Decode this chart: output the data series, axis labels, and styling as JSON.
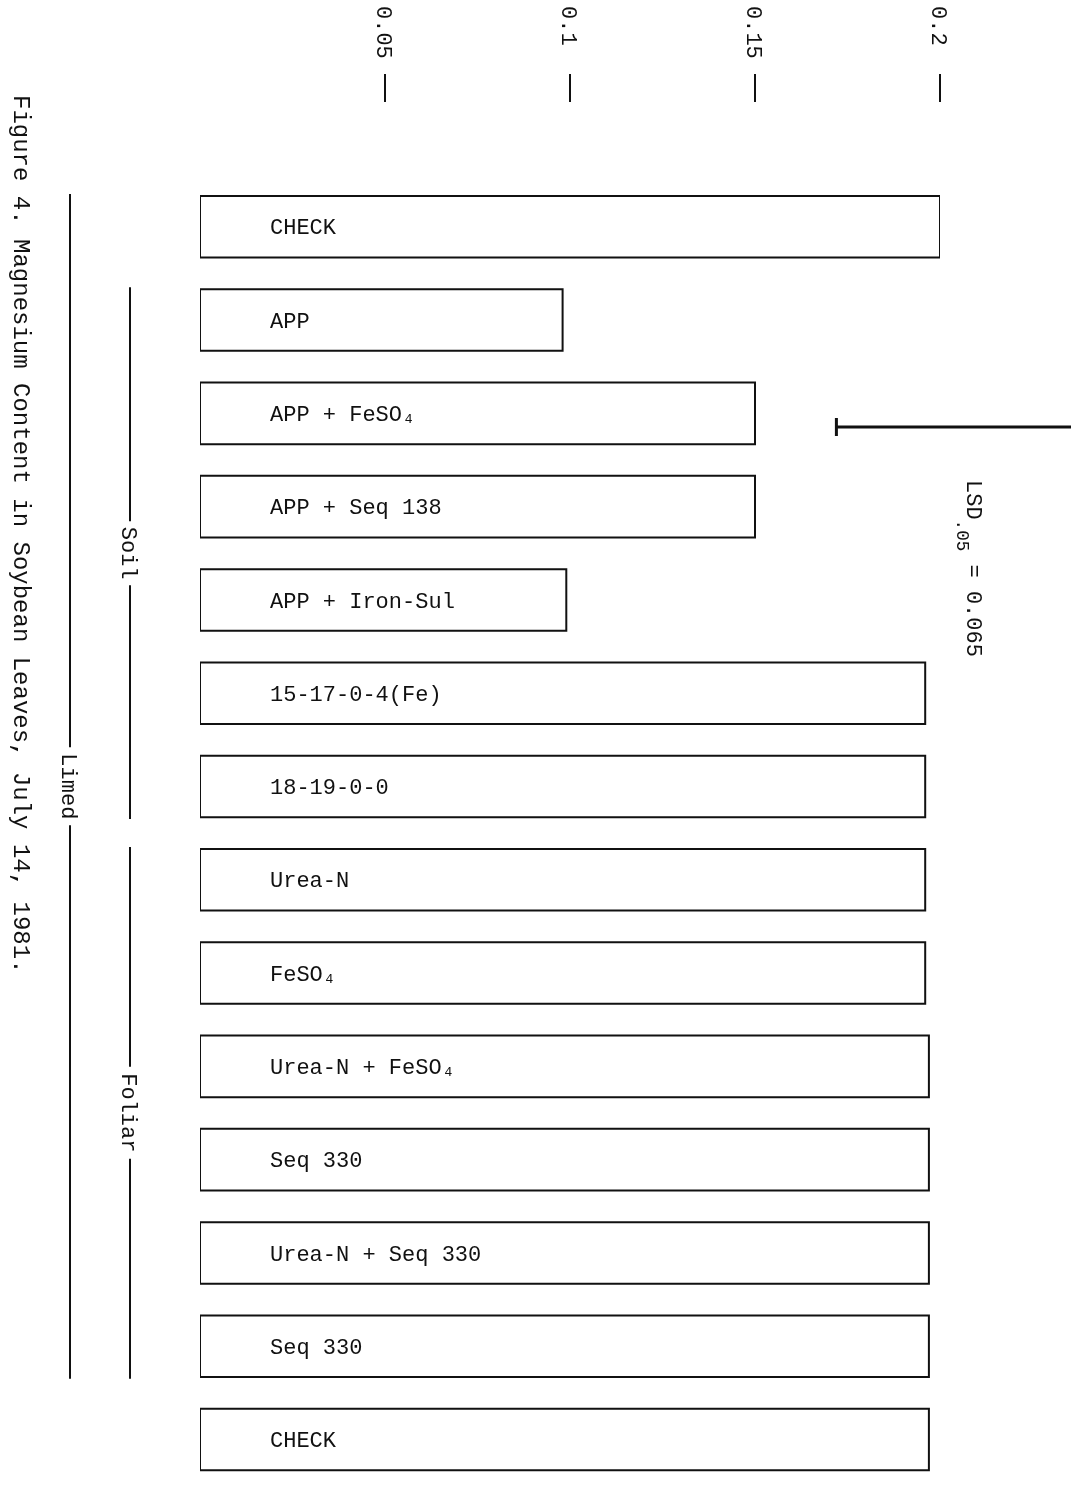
{
  "chart_data": {
    "type": "bar",
    "orientation": "horizontal",
    "title": "Figure 4. Magnesium Content in Soybean Leaves, July 14, 1981.",
    "categories": [
      "CHECK",
      "APP",
      "APP + FeSO₄",
      "APP + Seq 138",
      "APP + Iron-Sul",
      "15-17-0-4(Fe)",
      "18-19-0-0",
      "Urea-N",
      "FeSO₄",
      "Urea-N + FeSO₄",
      "Seq 330",
      "Urea-N + Seq 330",
      "Seq 330",
      "CHECK"
    ],
    "values": [
      0.2,
      0.098,
      0.15,
      0.15,
      0.099,
      0.196,
      0.196,
      0.196,
      0.196,
      0.197,
      0.197,
      0.197,
      0.197,
      0.197
    ],
    "color": "#ffffff",
    "xlim": [
      0,
      0.2
    ],
    "xticks": [
      0.05,
      0.1,
      0.15,
      0.2
    ],
    "annotations": [
      "Soil",
      "Foliar",
      "Limed",
      "LSD$_{.05}$ = 0.065"
    ]
  }
}
